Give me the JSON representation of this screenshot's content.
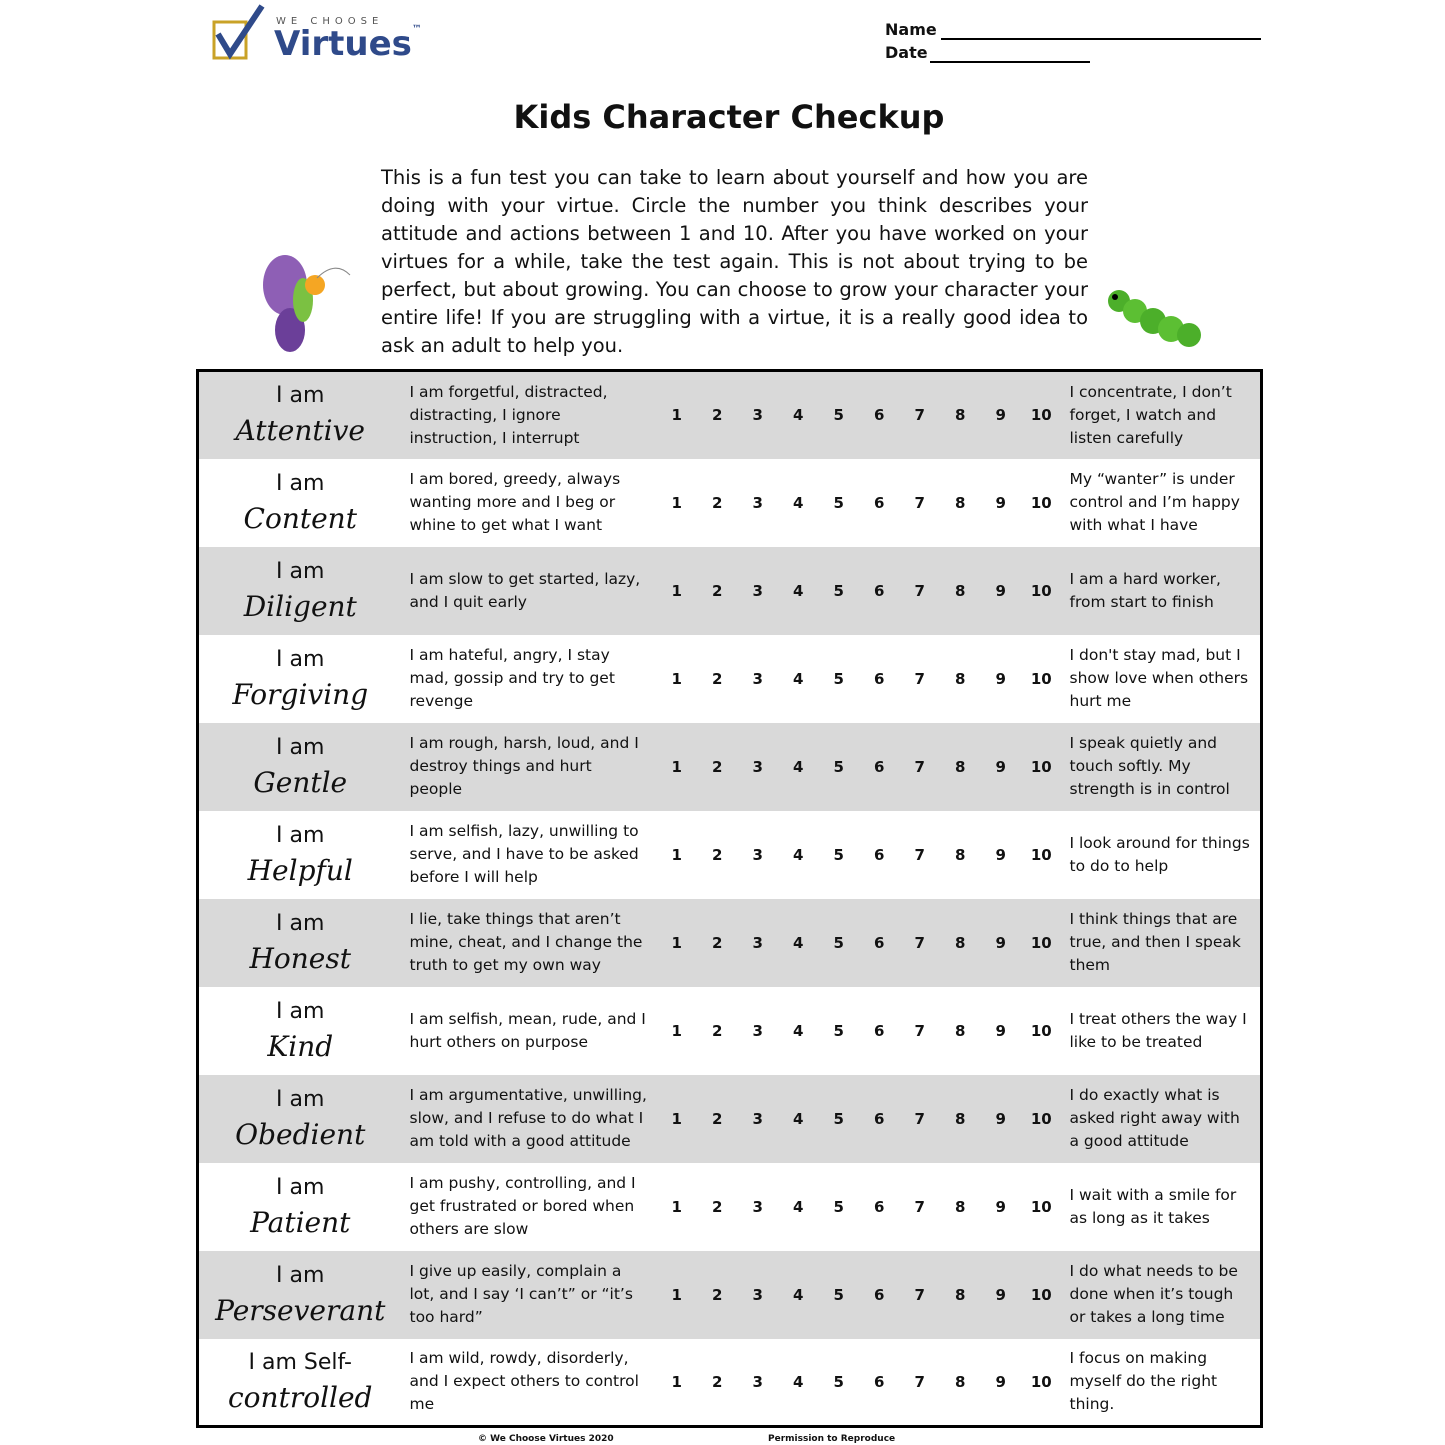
{
  "header": {
    "logo_small": "WE CHOOSE",
    "logo": "Virtues",
    "logo_mark": "™",
    "name_label": "Name",
    "date_label": "Date"
  },
  "title": "Kids Character Checkup",
  "intro": "This is a fun test you can take to learn about yourself and how you are doing with your virtue. Circle the number you think describes your attitude and actions between 1 and 10. After you have worked on your virtues for a while, take the test again. This is not about trying to be perfect, but about growing. You can choose to grow your character your entire life! If you are struggling with a virtue, it is a really good idea to ask an adult to help you.",
  "scale": [
    1,
    2,
    3,
    4,
    5,
    6,
    7,
    8,
    9,
    10
  ],
  "table": {
    "rows": [
      {
        "prefix": "I am",
        "virtue": "Attentive",
        "low": "I am forgetful, distracted, distracting, I ignore instruction, I interrupt",
        "high": "I concentrate, I don’t forget, I watch and listen carefully"
      },
      {
        "prefix": "I am",
        "virtue": "Content",
        "low": "I am bored, greedy, always wanting more and I beg or whine to get what I want",
        "high": "My “wanter” is under control and I’m happy with what I have"
      },
      {
        "prefix": "I am",
        "virtue": "Diligent",
        "low": "I am slow to get started, lazy, and I quit early",
        "high": "I am a hard worker, from start to finish"
      },
      {
        "prefix": "I am",
        "virtue": "Forgiving",
        "low": "I am hateful, angry, I stay mad, gossip and try to get revenge",
        "high": "I don't stay mad, but I show love when others hurt me"
      },
      {
        "prefix": "I am",
        "virtue": "Gentle",
        "low": "I am rough, harsh, loud, and I destroy things and hurt people",
        "high": "I speak quietly and touch softly. My strength is in control"
      },
      {
        "prefix": "I am",
        "virtue": "Helpful",
        "low": "I am selfish, lazy, unwilling to serve, and I have to be asked before I will help",
        "high": "I look around for things to do to help"
      },
      {
        "prefix": "I am",
        "virtue": "Honest",
        "low": "I lie, take things that aren’t mine, cheat, and I change the truth to get my own way",
        "high": "I think things that are true, and then I speak them"
      },
      {
        "prefix": "I am",
        "virtue": "Kind",
        "low": "I am selfish, mean, rude, and I hurt others on purpose",
        "high": "I treat others the way I like to be treated"
      },
      {
        "prefix": "I am",
        "virtue": "Obedient",
        "low": "I am argumentative, unwilling, slow, and I refuse to do what I am told with a good attitude",
        "high": "I do exactly what is asked right away with a good attitude"
      },
      {
        "prefix": "I am",
        "virtue": "Patient",
        "low": "I am pushy, controlling, and I get frustrated or bored when others are slow",
        "high": "I wait with a smile for as long as it takes"
      },
      {
        "prefix": "I am",
        "virtue": "Perseverant",
        "low": "I give up easily, complain a lot, and I say ‘I can’t” or “it’s too hard”",
        "high": "I do what needs to be done when it’s tough or takes a long time"
      },
      {
        "prefix": "I am Self-",
        "virtue": "controlled",
        "low": "I am wild, rowdy, disorderly, and I expect others to control me",
        "high": "I focus on making myself do the right thing."
      }
    ]
  },
  "footer": {
    "copyright": "© We Choose Virtues 2020",
    "permission": "Permission to Reproduce"
  }
}
